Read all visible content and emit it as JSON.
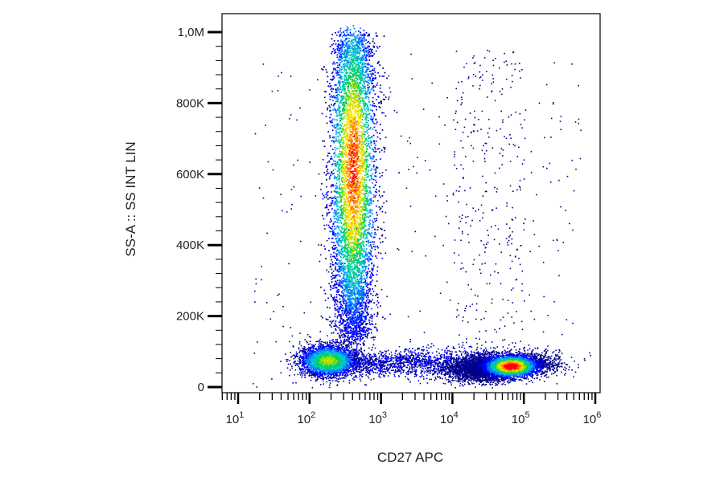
{
  "chart_data": {
    "type": "scatter",
    "subtype": "flow-cytometry-density-dot-plot",
    "title": "",
    "xlabel": "CD27 APC",
    "ylabel": "SS-A :: SS INT LIN",
    "x_scale": "log",
    "y_scale": "linear",
    "xlim": [
      1,
      1000000
    ],
    "ylim": [
      0,
      1000000
    ],
    "x_ticks": [
      {
        "value": 10,
        "base": "10",
        "exp": "1"
      },
      {
        "value": 100,
        "base": "10",
        "exp": "2"
      },
      {
        "value": 1000,
        "base": "10",
        "exp": "3"
      },
      {
        "value": 10000,
        "base": "10",
        "exp": "4"
      },
      {
        "value": 100000,
        "base": "10",
        "exp": "5"
      },
      {
        "value": 1000000,
        "base": "10",
        "exp": "6"
      }
    ],
    "y_ticks": [
      {
        "value": 0,
        "label": "0"
      },
      {
        "value": 200000,
        "label": "200K"
      },
      {
        "value": 400000,
        "label": "400K"
      },
      {
        "value": 600000,
        "label": "600K"
      },
      {
        "value": 800000,
        "label": "800K"
      },
      {
        "value": 1000000,
        "label": "1,0M"
      }
    ],
    "grid": false,
    "legend": "none",
    "colormap": [
      "#00008b",
      "#0000ff",
      "#0080ff",
      "#00c8c8",
      "#00d060",
      "#a0e000",
      "#ffe000",
      "#ff8000",
      "#ff0000"
    ],
    "populations": [
      {
        "name": "CD27- high-SSC cluster",
        "x_center": 400,
        "y_center": 620000,
        "peak_density": 0.85
      },
      {
        "name": "CD27- low-SSC cluster",
        "x_center": 180,
        "y_center": 75000,
        "peak_density": 0.6
      },
      {
        "name": "CD27+ low-SSC cluster",
        "x_center": 65000,
        "y_center": 60000,
        "peak_density": 1.0
      }
    ]
  }
}
